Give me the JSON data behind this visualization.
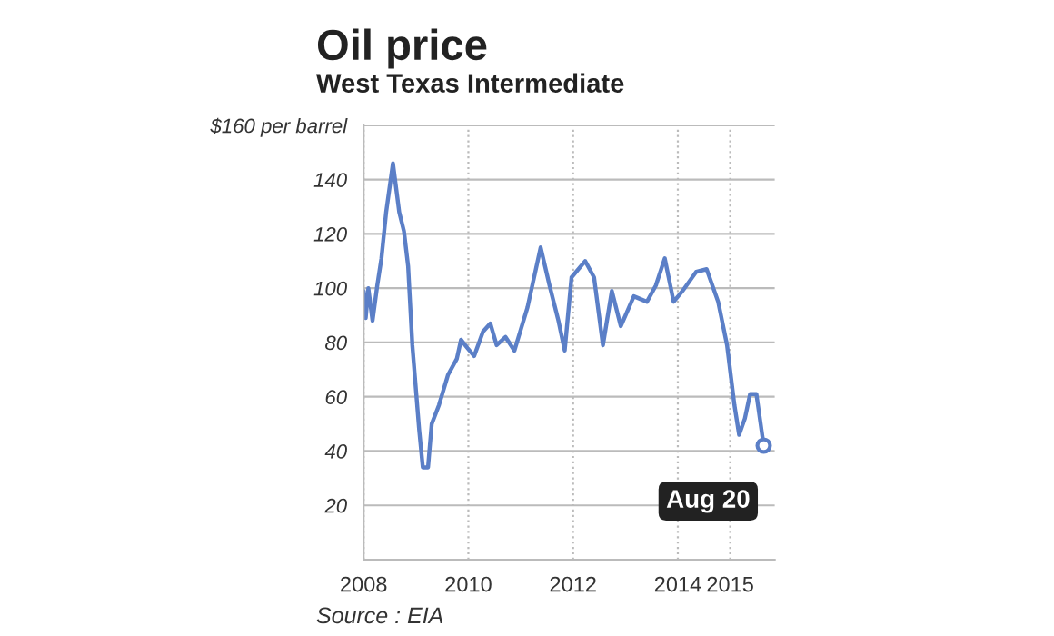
{
  "chart_data": {
    "type": "line",
    "title": "Oil price",
    "subtitle": "West Texas Intermediate",
    "annotations": [
      {
        "text": "Aug 20",
        "x": 2015.64,
        "y": 42
      },
      "Source : EIA"
    ],
    "x": [
      2008.0,
      2008.04,
      2008.09,
      2008.17,
      2008.26,
      2008.34,
      2008.43,
      2008.56,
      2008.68,
      2008.77,
      2008.85,
      2008.93,
      2009.06,
      2009.13,
      2009.23,
      2009.3,
      2009.44,
      2009.61,
      2009.78,
      2009.86,
      2009.98,
      2010.11,
      2010.28,
      2010.42,
      2010.54,
      2010.71,
      2010.88,
      2011.13,
      2011.38,
      2011.55,
      2011.72,
      2011.84,
      2011.97,
      2012.23,
      2012.4,
      2012.57,
      2012.74,
      2012.91,
      2013.16,
      2013.41,
      2013.58,
      2013.75,
      2013.92,
      2014.09,
      2014.35,
      2014.55,
      2014.77,
      2014.94,
      2015.08,
      2015.17,
      2015.28,
      2015.38,
      2015.5,
      2015.64
    ],
    "series": [
      {
        "color": "#5b7fc7",
        "values": [
          99,
          89,
          100,
          88,
          101,
          111,
          128,
          146,
          128,
          121,
          108,
          79,
          48,
          34,
          34,
          50,
          57,
          68,
          74,
          81,
          78,
          75,
          84,
          87,
          79,
          82,
          77,
          93,
          115,
          101,
          88,
          77,
          104,
          110,
          104,
          79,
          99,
          86,
          97,
          95,
          101,
          111,
          95,
          99,
          106,
          107,
          95,
          79,
          57,
          46,
          52,
          61,
          61,
          42
        ]
      }
    ],
    "xlim": [
      2008,
      2015.85
    ],
    "xticks": [
      2008,
      2010,
      2012,
      2014,
      2015
    ],
    "ylim": [
      0,
      160
    ],
    "yticks": [
      20,
      40,
      60,
      80,
      100,
      120,
      140,
      {
        "value": 160,
        "label": "$160 per barrel"
      }
    ],
    "grid": true,
    "marker": "none",
    "line_style": "solid"
  }
}
